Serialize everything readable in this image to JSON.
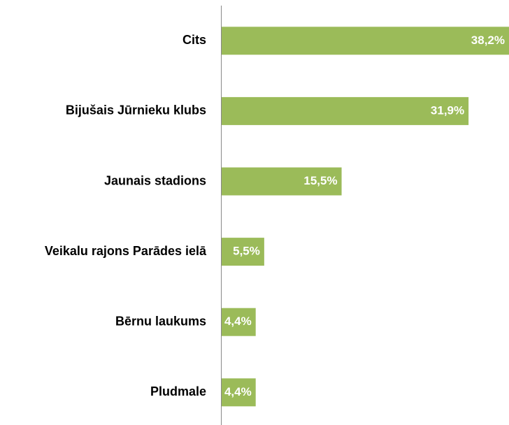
{
  "chart_data": {
    "type": "bar",
    "orientation": "horizontal",
    "categories": [
      "Cits",
      "Bijušais Jūrnieku klubs",
      "Jaunais stadions",
      "Veikalu rajons Parādes ielā",
      "Bērnu laukums",
      "Pludmale"
    ],
    "values": [
      38.2,
      31.9,
      15.5,
      5.5,
      4.4,
      4.4
    ],
    "value_labels": [
      "38,2%",
      "31,9%",
      "15,5%",
      "5,5%",
      "4,4%",
      "4,4%"
    ],
    "color": "#9bbb59"
  }
}
